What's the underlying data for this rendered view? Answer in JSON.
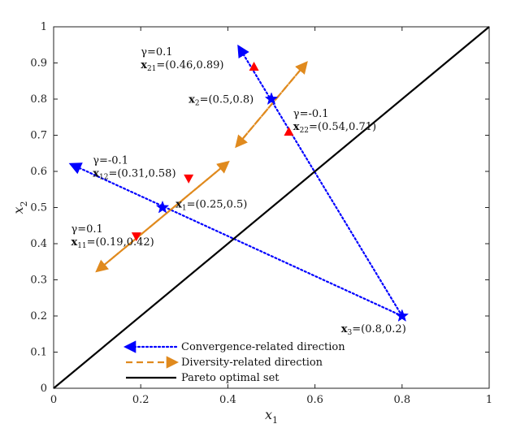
{
  "chart_data": {
    "type": "line",
    "xlabel": "x",
    "xlabel_sub": "1",
    "ylabel": "x",
    "ylabel_sub": "2",
    "xlim": [
      0,
      1
    ],
    "ylim": [
      0,
      1
    ],
    "xticks": [
      0,
      0.2,
      0.4,
      0.6,
      0.8,
      1
    ],
    "xtick_labels": [
      "0",
      "0.2",
      "0.4",
      "0.6",
      "0.8",
      "1"
    ],
    "yticks": [
      0,
      0.1,
      0.2,
      0.3,
      0.4,
      0.5,
      0.6,
      0.7,
      0.8,
      0.9,
      1
    ],
    "ytick_labels": [
      "0",
      "0.1",
      "0.2",
      "0.3",
      "0.4",
      "0.5",
      "0.6",
      "0.7",
      "0.8",
      "0.9",
      "1"
    ],
    "grid": false,
    "legend_position": "bottom-left",
    "series": [
      {
        "name": "Convergence-related direction",
        "color": "#0000ff",
        "style": "dotted",
        "lines": [
          {
            "from": [
              0.8,
              0.2
            ],
            "to": [
              0.04,
              0.62
            ]
          },
          {
            "from": [
              0.8,
              0.2
            ],
            "to": [
              0.425,
              0.945
            ]
          }
        ]
      },
      {
        "name": "Diversity-related direction",
        "color": "#e08a1e",
        "style": "dashed",
        "lines": [
          {
            "from": [
              0.1,
              0.325
            ],
            "to": [
              0.4,
              0.625
            ]
          },
          {
            "from": [
              0.4,
              0.625
            ],
            "to": [
              0.1,
              0.325
            ]
          },
          {
            "from": [
              0.42,
              0.67
            ],
            "to": [
              0.58,
              0.9
            ]
          },
          {
            "from": [
              0.58,
              0.9
            ],
            "to": [
              0.42,
              0.67
            ]
          }
        ]
      },
      {
        "name": "Pareto optimal set",
        "color": "#000000",
        "style": "solid",
        "lines": [
          {
            "from": [
              0,
              0
            ],
            "to": [
              1,
              1
            ]
          }
        ]
      }
    ],
    "points": [
      {
        "id": "x1",
        "x": 0.25,
        "y": 0.5,
        "marker": "star",
        "color": "#0000ff"
      },
      {
        "id": "x2",
        "x": 0.5,
        "y": 0.8,
        "marker": "star",
        "color": "#0000ff"
      },
      {
        "id": "x3",
        "x": 0.8,
        "y": 0.2,
        "marker": "star",
        "color": "#0000ff"
      },
      {
        "id": "x11",
        "x": 0.19,
        "y": 0.42,
        "marker": "triangle-down",
        "color": "#ff0000"
      },
      {
        "id": "x12",
        "x": 0.31,
        "y": 0.58,
        "marker": "triangle-down",
        "color": "#ff0000"
      },
      {
        "id": "x21",
        "x": 0.46,
        "y": 0.89,
        "marker": "triangle-up",
        "color": "#ff0000"
      },
      {
        "id": "x22",
        "x": 0.54,
        "y": 0.71,
        "marker": "triangle-up",
        "color": "#ff0000"
      }
    ],
    "annotations": [
      {
        "id": "x1",
        "bold": "x",
        "sub": "1",
        "rest": "=(0.25,0.5)",
        "gamma": "",
        "at": [
          0.28,
          0.5
        ]
      },
      {
        "id": "x2",
        "bold": "x",
        "sub": "2",
        "rest": "=(0.5,0.8)",
        "gamma": "",
        "at": [
          0.31,
          0.79
        ]
      },
      {
        "id": "x3",
        "bold": "x",
        "sub": "3",
        "rest": "=(0.8,0.2)",
        "gamma": "",
        "at": [
          0.66,
          0.155
        ]
      },
      {
        "id": "x11",
        "bold": "x",
        "sub": "11",
        "rest": "=(0.19,0.42)",
        "gamma": "γ=0.1",
        "at": [
          0.04,
          0.395
        ]
      },
      {
        "id": "x12",
        "bold": "x",
        "sub": "12",
        "rest": "=(0.31,0.58)",
        "gamma": "γ=-0.1",
        "at": [
          0.09,
          0.585
        ]
      },
      {
        "id": "x21",
        "bold": "x",
        "sub": "21",
        "rest": "=(0.46,0.89)",
        "gamma": "γ=0.1",
        "at": [
          0.2,
          0.885
        ]
      },
      {
        "id": "x22",
        "bold": "x",
        "sub": "22",
        "rest": "=(0.54,0.71)",
        "gamma": "γ=-0.1",
        "at": [
          0.55,
          0.715
        ]
      }
    ]
  },
  "colors": {
    "convergence": "#0000ff",
    "diversity": "#e08a1e",
    "pareto": "#000000",
    "subpoint": "#ff0000",
    "axis": "#222222"
  }
}
